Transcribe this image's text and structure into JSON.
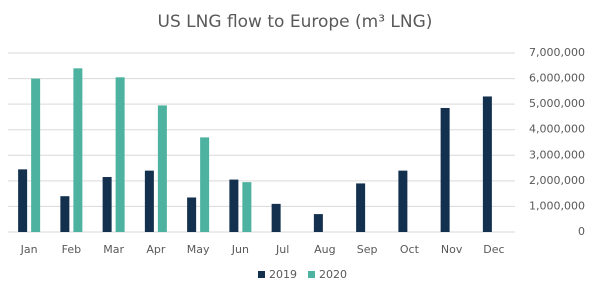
{
  "chart_data": {
    "type": "bar",
    "title": "US LNG flow to Europe (m³ LNG)",
    "categories": [
      "Jan",
      "Feb",
      "Mar",
      "Apr",
      "May",
      "Jun",
      "Jul",
      "Aug",
      "Sep",
      "Oct",
      "Nov",
      "Dec"
    ],
    "series": [
      {
        "name": "2019",
        "color": "#13304f",
        "values": [
          2450000,
          1400000,
          2150000,
          2400000,
          1350000,
          2050000,
          1100000,
          700000,
          1900000,
          2400000,
          4850000,
          5300000
        ]
      },
      {
        "name": "2020",
        "color": "#4db3a0",
        "values": [
          6000000,
          6400000,
          6050000,
          4950000,
          3700000,
          1950000,
          null,
          null,
          null,
          null,
          null,
          null
        ]
      }
    ],
    "ylim": [
      0,
      7000000
    ],
    "yticks": [
      0,
      {
        "value": 1000000,
        "label": "1,000,000"
      },
      {
        "value": 2000000,
        "label": "2,000,000"
      },
      {
        "value": 3000000,
        "label": "3,000,000"
      },
      {
        "value": 4000000,
        "label": "4,000,000"
      },
      {
        "value": 5000000,
        "label": "5,000,000"
      },
      {
        "value": 6000000,
        "label": "6,000,000"
      },
      {
        "value": 7000000,
        "label": "7,000,000"
      }
    ],
    "grid": true,
    "legend": "bottom"
  }
}
